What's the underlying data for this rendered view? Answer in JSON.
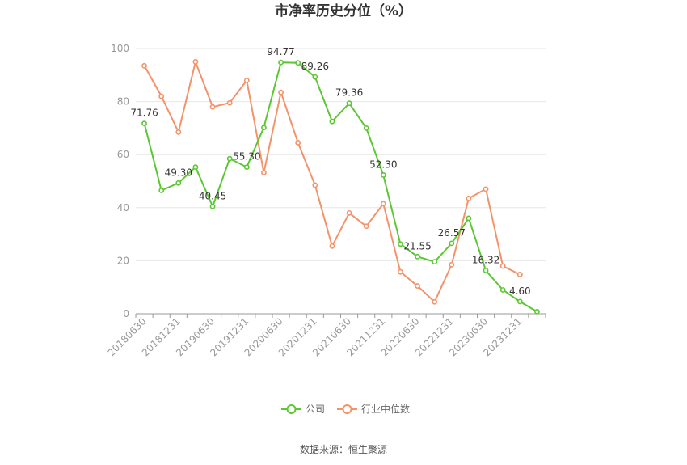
{
  "chart_data": {
    "type": "line",
    "title": "市净率历史分位（%）",
    "source": "数据来源：恒生聚源",
    "xlabel": "",
    "ylabel": "",
    "ylim": [
      0,
      100
    ],
    "yticks": [
      0,
      20,
      40,
      60,
      80,
      100
    ],
    "grid": true,
    "legend_position": "bottom",
    "x": [
      "20180630",
      "20180930",
      "20181231",
      "20190331",
      "20190630",
      "20190930",
      "20191231",
      "20200331",
      "20200630",
      "20200930",
      "20201231",
      "20210331",
      "20210630",
      "20210930",
      "20211231",
      "20220331",
      "20220630",
      "20220930",
      "20221231",
      "20230331",
      "20230630",
      "20230930",
      "20231231",
      "20240331"
    ],
    "xtick_labels": [
      "20180630",
      "20181231",
      "20190630",
      "20191231",
      "20200630",
      "20201231",
      "20210630",
      "20211231",
      "20220630",
      "20221231",
      "20230630",
      "20231231"
    ],
    "series": [
      {
        "name": "公司",
        "color": "#5cc732",
        "values": [
          71.76,
          46.5,
          49.3,
          55.3,
          40.45,
          58.5,
          55.3,
          70.2,
          94.77,
          94.6,
          89.26,
          72.5,
          79.36,
          70.0,
          52.3,
          26.3,
          21.55,
          19.6,
          26.57,
          36.0,
          16.32,
          9.0,
          4.6,
          0.8
        ],
        "labels": [
          {
            "index": 0,
            "text": "71.76"
          },
          {
            "index": 2,
            "text": "49.30"
          },
          {
            "index": 4,
            "text": "40.45"
          },
          {
            "index": 6,
            "text": "55.30"
          },
          {
            "index": 8,
            "text": "94.77"
          },
          {
            "index": 10,
            "text": "89.26"
          },
          {
            "index": 12,
            "text": "79.36"
          },
          {
            "index": 14,
            "text": "52.30"
          },
          {
            "index": 16,
            "text": "21.55"
          },
          {
            "index": 18,
            "text": "26.57"
          },
          {
            "index": 20,
            "text": "16.32"
          },
          {
            "index": 22,
            "text": "4.60"
          }
        ]
      },
      {
        "name": "行业中位数",
        "color": "#f4926a",
        "values": [
          93.5,
          82.0,
          68.5,
          95.0,
          78.0,
          79.5,
          88.0,
          53.2,
          83.5,
          64.5,
          48.5,
          25.5,
          38.0,
          33.0,
          41.5,
          15.8,
          10.5,
          4.5,
          18.5,
          43.5,
          47.0,
          18.0,
          14.8,
          null
        ]
      }
    ]
  }
}
